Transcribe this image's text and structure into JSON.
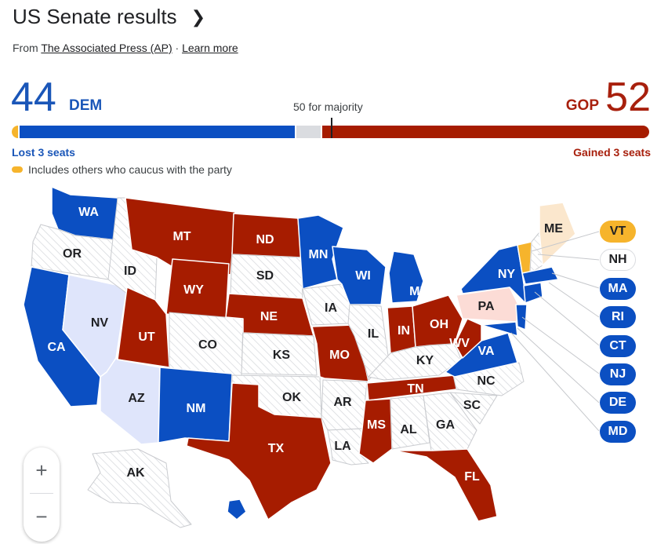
{
  "header": {
    "title": "US Senate results",
    "from_prefix": "From ",
    "source_link": "The Associated Press (AP)",
    "separator": " · ",
    "learn_more": "Learn more"
  },
  "tally": {
    "dem_count": "44",
    "dem_label": "DEM",
    "gop_count": "52",
    "gop_label": "GOP",
    "majority_label": "50 for majority",
    "dem_change": "Lost 3 seats",
    "gop_change": "Gained 3 seats",
    "legend_note": "Includes others who caucus with the party",
    "total_seats": 100,
    "others_with_dem": 2,
    "dem_seats": 44,
    "undecided_seats": 4,
    "gop_seats": 52,
    "majority": 50
  },
  "colors": {
    "dem": "#0b4fc2",
    "gop": "#a61c00",
    "dem_light": "#dfe5fb",
    "gop_light": "#fcdcd6",
    "independent": "#f6b42c",
    "independent_light": "#fbe7cd",
    "no_race": "#ffffff",
    "undecided": "#dadce0"
  },
  "map": {
    "states": [
      {
        "abbr": "WA",
        "status": "dem"
      },
      {
        "abbr": "OR",
        "status": "none"
      },
      {
        "abbr": "CA",
        "status": "dem"
      },
      {
        "abbr": "NV",
        "status": "dem_light"
      },
      {
        "abbr": "ID",
        "status": "none"
      },
      {
        "abbr": "MT",
        "status": "gop"
      },
      {
        "abbr": "WY",
        "status": "gop"
      },
      {
        "abbr": "UT",
        "status": "gop"
      },
      {
        "abbr": "AZ",
        "status": "dem_light"
      },
      {
        "abbr": "CO",
        "status": "none"
      },
      {
        "abbr": "NM",
        "status": "dem"
      },
      {
        "abbr": "ND",
        "status": "gop"
      },
      {
        "abbr": "SD",
        "status": "none"
      },
      {
        "abbr": "NE",
        "status": "gop"
      },
      {
        "abbr": "KS",
        "status": "none"
      },
      {
        "abbr": "OK",
        "status": "none"
      },
      {
        "abbr": "TX",
        "status": "gop"
      },
      {
        "abbr": "MN",
        "status": "dem"
      },
      {
        "abbr": "IA",
        "status": "none"
      },
      {
        "abbr": "MO",
        "status": "gop"
      },
      {
        "abbr": "AR",
        "status": "none"
      },
      {
        "abbr": "LA",
        "status": "none"
      },
      {
        "abbr": "WI",
        "status": "dem"
      },
      {
        "abbr": "IL",
        "status": "none"
      },
      {
        "abbr": "MI",
        "status": "dem"
      },
      {
        "abbr": "IN",
        "status": "gop"
      },
      {
        "abbr": "OH",
        "status": "gop"
      },
      {
        "abbr": "KY",
        "status": "none"
      },
      {
        "abbr": "TN",
        "status": "gop"
      },
      {
        "abbr": "MS",
        "status": "gop"
      },
      {
        "abbr": "AL",
        "status": "none"
      },
      {
        "abbr": "GA",
        "status": "none"
      },
      {
        "abbr": "FL",
        "status": "gop"
      },
      {
        "abbr": "SC",
        "status": "none"
      },
      {
        "abbr": "NC",
        "status": "none"
      },
      {
        "abbr": "VA",
        "status": "dem"
      },
      {
        "abbr": "WV",
        "status": "gop"
      },
      {
        "abbr": "PA",
        "status": "gop_light"
      },
      {
        "abbr": "NY",
        "status": "dem"
      },
      {
        "abbr": "ME",
        "status": "independent_light"
      },
      {
        "abbr": "AK",
        "status": "none"
      },
      {
        "abbr": "HI",
        "status": "dem"
      }
    ],
    "callouts": [
      {
        "abbr": "VT",
        "status": "independent"
      },
      {
        "abbr": "NH",
        "status": "none"
      },
      {
        "abbr": "MA",
        "status": "dem"
      },
      {
        "abbr": "RI",
        "status": "dem"
      },
      {
        "abbr": "CT",
        "status": "dem"
      },
      {
        "abbr": "NJ",
        "status": "dem"
      },
      {
        "abbr": "DE",
        "status": "dem"
      },
      {
        "abbr": "MD",
        "status": "dem"
      }
    ]
  },
  "zoom": {
    "in_symbol": "+",
    "out_symbol": "−"
  }
}
